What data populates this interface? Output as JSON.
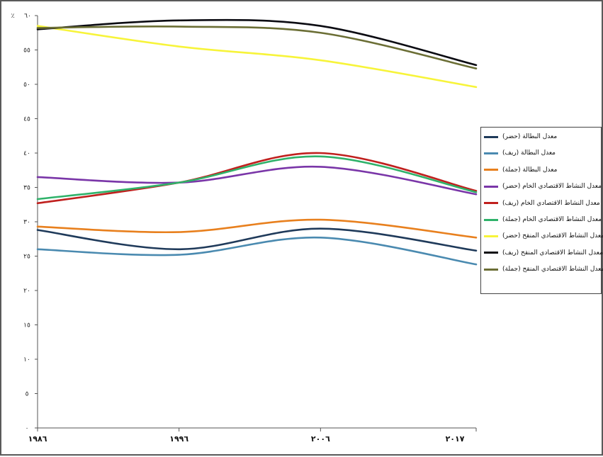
{
  "chart_data": {
    "type": "line",
    "title": "",
    "xlabel": "",
    "ylabel": "",
    "y_unit_label": "٪",
    "categories": [
      "١٩٨٦",
      "١٩٩٦",
      "٢٠٠٦",
      "٢٠١٧"
    ],
    "x": [
      1986,
      1996,
      2006,
      2017
    ],
    "ylim": [
      0,
      60
    ],
    "yticks": [
      0,
      5,
      10,
      15,
      20,
      25,
      30,
      35,
      40,
      45,
      50,
      55,
      60
    ],
    "ytick_labels": [
      "٠",
      "٥",
      "١٠",
      "١٥",
      "٢٠",
      "٢٥",
      "٣٠",
      "٣٥",
      "٤٠",
      "٤٥",
      "٥٠",
      "٥٥",
      "٦٠"
    ],
    "grid": false,
    "legend_position": "right",
    "series": [
      {
        "name": "معدل البطالة (حضر)",
        "color": "#1f3a5a",
        "values": [
          28.8,
          26.0,
          29.0,
          25.8
        ]
      },
      {
        "name": "معدل البطالة (ريف)",
        "color": "#4a8ab0",
        "values": [
          26.0,
          25.2,
          27.7,
          23.8
        ]
      },
      {
        "name": "معدل البطالة (جملة)",
        "color": "#e8801e",
        "values": [
          29.3,
          28.5,
          30.3,
          27.7
        ]
      },
      {
        "name": "معدل النشاط الاقتصادي الخام (حضر)",
        "color": "#7a36a8",
        "values": [
          36.5,
          35.7,
          38.0,
          34.0
        ]
      },
      {
        "name": "معدل النشاط الاقتصادي الخام (ريف)",
        "color": "#c0201e",
        "values": [
          32.7,
          35.7,
          40.0,
          34.5
        ]
      },
      {
        "name": "معدل النشاط الاقتصادي الخام (جملة)",
        "color": "#2fb26a",
        "values": [
          33.3,
          35.7,
          39.5,
          34.3
        ]
      },
      {
        "name": "معدل النشاط الاقتصادي المنقح (حضر)",
        "color": "#f7f43a",
        "values": [
          58.5,
          55.5,
          53.5,
          49.6
        ]
      },
      {
        "name": "معدل النشاط الاقتصادي المنقح (ريف)",
        "color": "#0b0b12",
        "values": [
          58.0,
          59.3,
          58.5,
          52.8
        ]
      },
      {
        "name": "معدل النشاط الاقتصادي المنقح (جملة)",
        "color": "#6b6e35",
        "values": [
          58.2,
          58.4,
          57.5,
          52.3
        ]
      }
    ]
  }
}
